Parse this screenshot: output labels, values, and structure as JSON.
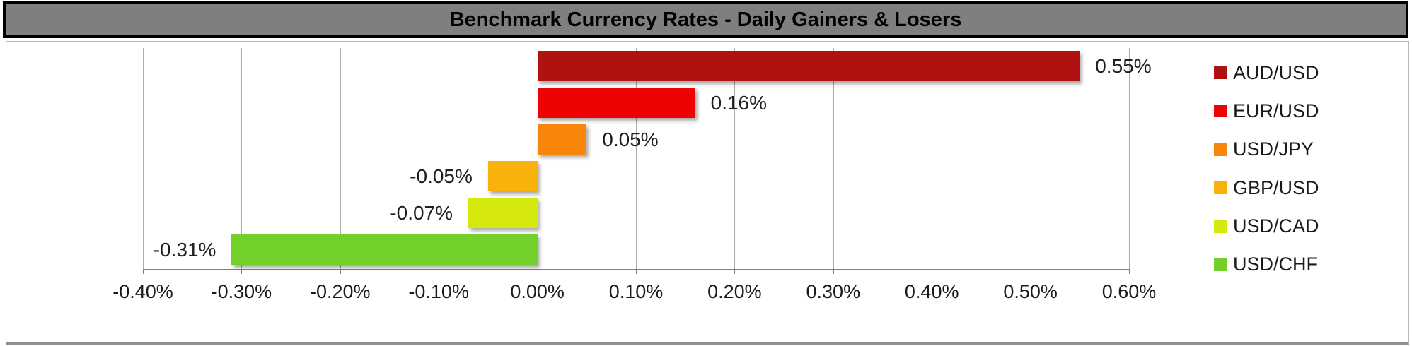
{
  "title": "Benchmark Currency Rates - Daily Gainers & Losers",
  "chart_data": {
    "type": "bar",
    "orientation": "horizontal",
    "title": "Benchmark Currency Rates - Daily Gainers & Losers",
    "categories": [
      "AUD/USD",
      "EUR/USD",
      "USD/JPY",
      "GBP/USD",
      "USD/CAD",
      "USD/CHF"
    ],
    "values": [
      0.55,
      0.16,
      0.05,
      -0.05,
      -0.07,
      -0.31
    ],
    "data_labels": [
      "0.55%",
      "0.16%",
      "0.05%",
      "-0.05%",
      "-0.07%",
      "-0.31%"
    ],
    "colors": [
      "#B01111",
      "#EE0303",
      "#F8860B",
      "#F9B10B",
      "#D6E90D",
      "#73D02B"
    ],
    "x_ticks": [
      "-0.40%",
      "-0.30%",
      "-0.20%",
      "-0.10%",
      "0.00%",
      "0.10%",
      "0.20%",
      "0.30%",
      "0.40%",
      "0.50%",
      "0.60%"
    ],
    "xlim": [
      -0.4,
      0.6
    ],
    "tick_step": 0.1,
    "grid": true,
    "legend_position": "right",
    "title_bg_color": "#7F7F7F",
    "gridline_color": "#acacac"
  }
}
